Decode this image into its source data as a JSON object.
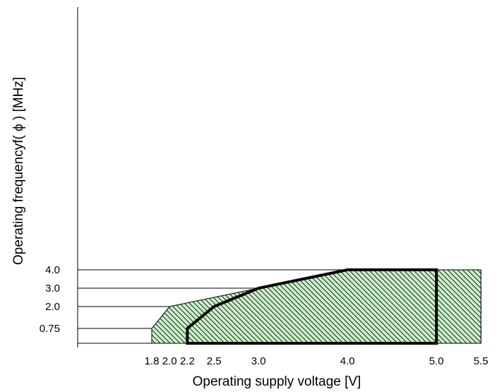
{
  "chart_data": {
    "type": "area",
    "xlabel": "Operating supply voltage [V]",
    "ylabel": "Operating frequencyf( ϕ ) [MHz]",
    "x_ticks": [
      {
        "value": 1.8,
        "label": "1.8"
      },
      {
        "value": 2.0,
        "label": "2.0"
      },
      {
        "value": 2.2,
        "label": "2.2"
      },
      {
        "value": 2.5,
        "label": "2.5"
      },
      {
        "value": 3.0,
        "label": "3.0"
      },
      {
        "value": 4.0,
        "label": "4.0"
      },
      {
        "value": 5.0,
        "label": "5.0"
      },
      {
        "value": 5.5,
        "label": "5.5"
      }
    ],
    "y_ticks": [
      {
        "value": 0.75,
        "label": "0.75"
      },
      {
        "value": 2.0,
        "label": "2.0"
      },
      {
        "value": 3.0,
        "label": "3.0"
      },
      {
        "value": 4.0,
        "label": "4.0"
      }
    ],
    "series": [
      {
        "region": "outer",
        "fill": "#c8f0c8",
        "points": [
          [
            1.8,
            0
          ],
          [
            1.8,
            0.75
          ],
          [
            2.0,
            2.0
          ],
          [
            3.0,
            3.0
          ],
          [
            4.0,
            4.0
          ],
          [
            5.5,
            4.0
          ],
          [
            5.5,
            0
          ]
        ]
      },
      {
        "region": "inner",
        "outline": "#000000",
        "points": [
          [
            2.2,
            0
          ],
          [
            2.2,
            0.75
          ],
          [
            2.5,
            2.0
          ],
          [
            3.0,
            3.0
          ],
          [
            4.0,
            4.0
          ],
          [
            5.0,
            4.0
          ],
          [
            5.0,
            0
          ]
        ]
      }
    ],
    "grid": true,
    "hatch": "diagonal"
  }
}
